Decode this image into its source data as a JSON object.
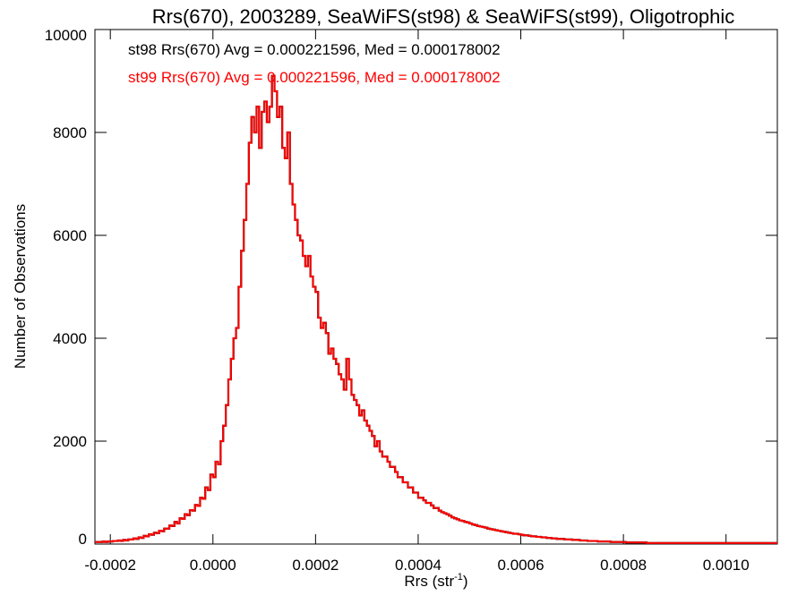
{
  "chart_data": {
    "type": "histogram",
    "title": "Rrs(670), 2003289, SeaWiFS(st98) & SeaWiFS(st99), Oligotrophic",
    "xlabel": "Rrs (str",
    "xlabel_sup": "-1",
    "xlabel_close": ")",
    "ylabel": "Number of Observations",
    "xlim": [
      -0.00023,
      0.0011
    ],
    "ylim": [
      0,
      10000
    ],
    "x_ticks": [
      -0.0002,
      0.0,
      0.0002,
      0.0004,
      0.0006,
      0.0008,
      0.001
    ],
    "x_tick_labels": [
      "-0.0002",
      "0.0000",
      "0.0002",
      "0.0004",
      "0.0006",
      "0.0008",
      "0.0010"
    ],
    "y_ticks": [
      0,
      2000,
      4000,
      6000,
      8000,
      10000
    ],
    "y_tick_labels": [
      "0",
      "2000",
      "4000",
      "6000",
      "8000",
      "10000"
    ],
    "annotations": [
      {
        "text": "st98 Rrs(670) Avg = 0.000221596, Med = 0.000178002",
        "color": "#000000"
      },
      {
        "text": "st99 Rrs(670) Avg = 0.000221596, Med = 0.000178002",
        "color": "#ff0000"
      }
    ],
    "series": [
      {
        "color": "#000000",
        "bin_start": -0.00023,
        "bin_width": 5e-06,
        "values": [
          40,
          40,
          40,
          50,
          40,
          50,
          50,
          60,
          60,
          70,
          60,
          80,
          70,
          90,
          90,
          110,
          100,
          130,
          120,
          160,
          150,
          190,
          180,
          220,
          210,
          260,
          250,
          300,
          300,
          360,
          350,
          430,
          400,
          500,
          490,
          580,
          560,
          660,
          650,
          760,
          740,
          900,
          880,
          1100,
          1050,
          1350,
          1300,
          1600,
          1550,
          2000,
          2300,
          2700,
          3200,
          3600,
          4000,
          4200,
          5000,
          5700,
          6300,
          7000,
          7800,
          8300,
          8000,
          8500,
          7700,
          8400,
          8600,
          8200,
          8500,
          9100,
          8800,
          8300,
          8500,
          7700,
          7500,
          8000,
          7000,
          6600,
          6300,
          6000,
          5900,
          5600,
          5400,
          5600,
          5200,
          5000,
          4900,
          4400,
          4200,
          4300,
          4100,
          3700,
          3800,
          3600,
          3500,
          3300,
          3200,
          3000,
          3600,
          3200,
          2900,
          2800,
          2700,
          2500,
          2600,
          2400,
          2300,
          2200,
          2100,
          1900,
          2000,
          1800,
          1700,
          1700,
          1600,
          1500,
          1500,
          1400,
          1300,
          1300,
          1200,
          1200,
          1100,
          1100,
          1000,
          1000,
          900,
          900,
          850,
          800,
          800,
          750,
          700,
          700,
          650,
          620,
          600,
          580,
          550,
          520,
          500,
          480,
          460,
          450,
          430,
          420,
          400,
          380,
          370,
          350,
          340,
          330,
          320,
          300,
          290,
          280,
          270,
          260,
          250,
          240,
          230,
          220,
          210,
          200,
          200,
          190,
          180,
          170,
          170,
          160,
          150,
          150,
          140,
          140,
          130,
          130,
          120,
          120,
          110,
          110,
          100,
          100,
          100,
          90,
          90,
          90,
          80,
          80,
          80,
          70,
          70,
          70,
          60,
          60,
          60,
          60,
          50,
          50,
          50,
          50,
          50,
          40,
          40,
          40,
          40,
          40,
          40,
          30,
          30,
          30,
          30,
          30,
          30,
          30,
          30,
          20,
          20,
          20,
          20,
          20,
          20,
          20,
          20,
          20,
          20,
          20,
          20,
          20,
          20,
          20,
          20,
          20,
          20,
          20,
          20,
          20,
          20,
          20,
          20,
          20,
          20,
          20,
          20,
          20,
          20,
          20,
          20,
          20,
          20,
          20,
          20,
          20,
          20,
          20,
          20,
          20,
          20,
          20,
          20,
          20,
          20,
          20,
          20,
          20,
          20,
          20,
          20
        ]
      },
      {
        "color": "#ff0000",
        "same_as": 0
      }
    ]
  }
}
